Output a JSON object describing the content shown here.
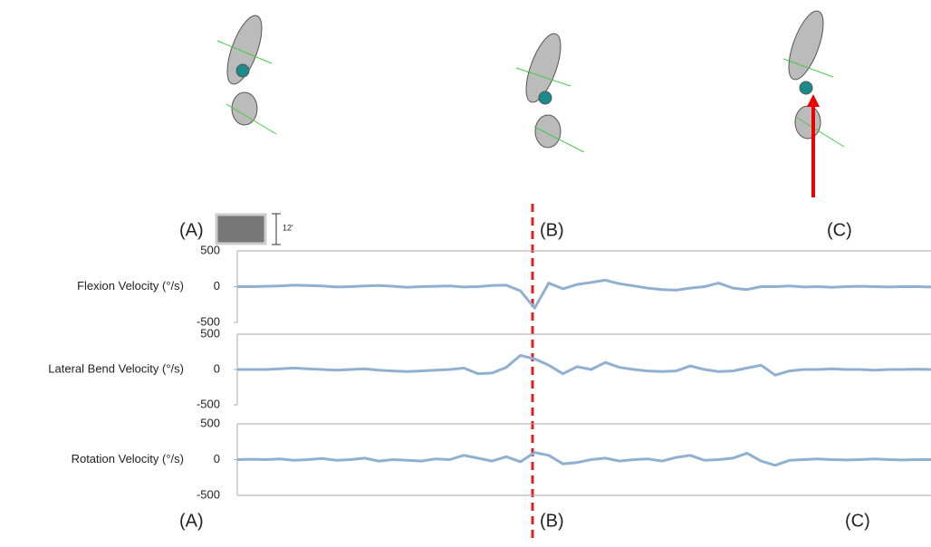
{
  "labels_top": [
    "(A)",
    "(B)",
    "(C)"
  ],
  "labels_bottom": [
    "(A)",
    "(B)",
    "(C)"
  ],
  "scale_label": "12'",
  "chart_data": [
    {
      "type": "line",
      "y_label": "Flexion Velocity (°/s)",
      "ylim": [
        -500,
        500
      ],
      "yticks": [
        -500,
        0,
        500
      ],
      "series": [
        {
          "color": "#8fb0d0",
          "values": [
            0,
            0,
            5,
            10,
            20,
            15,
            10,
            -5,
            0,
            10,
            15,
            5,
            -10,
            0,
            5,
            10,
            -5,
            0,
            15,
            20,
            -60,
            -300,
            50,
            -30,
            30,
            60,
            90,
            40,
            10,
            -20,
            -40,
            -50,
            -20,
            0,
            50,
            -20,
            -40,
            0,
            0,
            10,
            -5,
            0,
            -10,
            0,
            5,
            0,
            -5,
            0,
            0,
            -5
          ]
        }
      ]
    },
    {
      "type": "line",
      "y_label": "Lateral Bend Velocity (°/s)",
      "ylim": [
        -500,
        500
      ],
      "yticks": [
        -500,
        0,
        500
      ],
      "series": [
        {
          "color": "#8fb0d0",
          "values": [
            0,
            0,
            0,
            10,
            20,
            10,
            0,
            -10,
            0,
            10,
            -10,
            -20,
            -30,
            -20,
            -10,
            0,
            20,
            -60,
            -50,
            30,
            200,
            150,
            60,
            -60,
            40,
            0,
            100,
            30,
            0,
            -20,
            -30,
            -20,
            50,
            0,
            -30,
            -20,
            20,
            60,
            -80,
            -20,
            0,
            0,
            10,
            0,
            0,
            -10,
            0,
            0,
            5,
            0
          ]
        }
      ]
    },
    {
      "type": "line",
      "y_label": "Rotation Velocity (°/s)",
      "ylim": [
        -500,
        500
      ],
      "yticks": [
        -500,
        0,
        500
      ],
      "series": [
        {
          "color": "#8fb0d0",
          "values": [
            0,
            5,
            0,
            10,
            -10,
            0,
            15,
            -10,
            0,
            20,
            -20,
            0,
            -10,
            -20,
            10,
            0,
            60,
            20,
            -20,
            40,
            -30,
            100,
            60,
            -60,
            -40,
            0,
            20,
            -20,
            0,
            10,
            -20,
            30,
            60,
            -10,
            0,
            20,
            90,
            -20,
            -80,
            -10,
            0,
            10,
            0,
            -5,
            0,
            10,
            0,
            -5,
            0,
            0
          ]
        }
      ]
    }
  ]
}
